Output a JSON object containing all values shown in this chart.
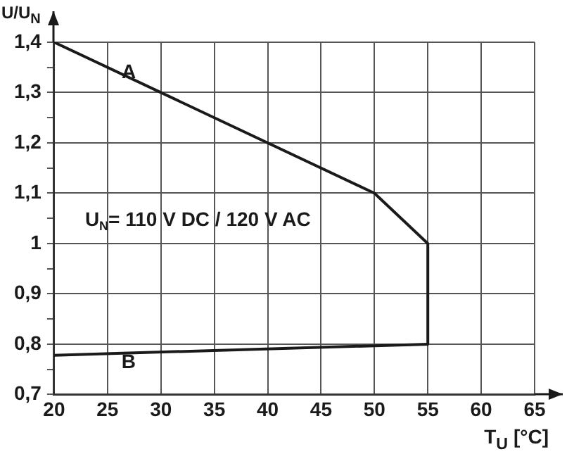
{
  "chart_data": {
    "type": "line",
    "xlabel": "T$_{U}$ [°C]",
    "ylabel": "U/U$_{N}$",
    "series": [
      {
        "color": "#1a1a1a",
        "x": [
          20,
          50,
          55,
          55
        ],
        "values": [
          1.4,
          1.1,
          1.0,
          0.8
        ]
      },
      {
        "color": "#1a1a1a",
        "x": [
          20,
          55
        ],
        "values": [
          0.778,
          0.8
        ]
      }
    ],
    "annotations": [
      {
        "text": "A",
        "x": 27,
        "y": 1.34
      },
      "B",
      "U$_{N}$= 110 V DC / 120 V AC"
    ],
    "xlim": [
      20,
      65
    ],
    "xticks": [
      20,
      25,
      30,
      35,
      40,
      45,
      50,
      55,
      60,
      65
    ],
    "ylim": [
      0.7,
      1.4
    ],
    "yticks": [
      {
        "value": 0.7,
        "label": "0,7"
      },
      {
        "value": 0.75,
        "label": null
      },
      {
        "value": 0.8,
        "label": "0,8"
      },
      {
        "value": 0.85,
        "label": null
      },
      {
        "value": 0.9,
        "label": "0,9"
      },
      {
        "value": 0.95,
        "label": null
      },
      1,
      {
        "value": 1.05,
        "label": null
      },
      {
        "value": 1.1,
        "label": "1,1"
      },
      {
        "value": 1.15,
        "label": null
      },
      {
        "value": 1.2,
        "label": "1,2"
      },
      {
        "value": 1.25,
        "label": null
      },
      {
        "value": 1.3,
        "label": "1,3"
      },
      {
        "value": 1.35,
        "label": null
      },
      {
        "value": 1.4,
        "label": "1,4"
      }
    ],
    "grid": true,
    "legend": false,
    "marker": "none",
    "line_style": "solid"
  }
}
